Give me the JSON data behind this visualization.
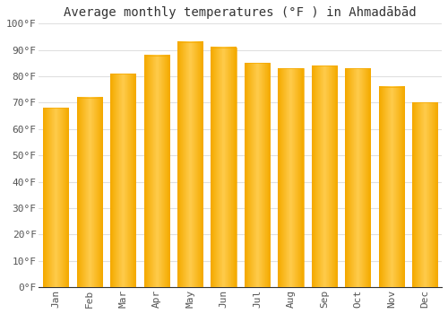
{
  "title": "Average monthly temperatures (°F ) in Ahmadābād",
  "months": [
    "Jan",
    "Feb",
    "Mar",
    "Apr",
    "May",
    "Jun",
    "Jul",
    "Aug",
    "Sep",
    "Oct",
    "Nov",
    "Dec"
  ],
  "values": [
    68,
    72,
    81,
    88,
    93,
    91,
    85,
    83,
    84,
    83,
    76,
    70
  ],
  "bar_color_center": "#FFC84A",
  "bar_color_edge": "#F5A800",
  "background_color": "#FFFFFF",
  "ylim": [
    0,
    100
  ],
  "yticks": [
    0,
    10,
    20,
    30,
    40,
    50,
    60,
    70,
    80,
    90,
    100
  ],
  "grid_color": "#E0E0E0",
  "title_fontsize": 10,
  "tick_fontsize": 8,
  "font_family": "monospace",
  "bar_width": 0.75
}
